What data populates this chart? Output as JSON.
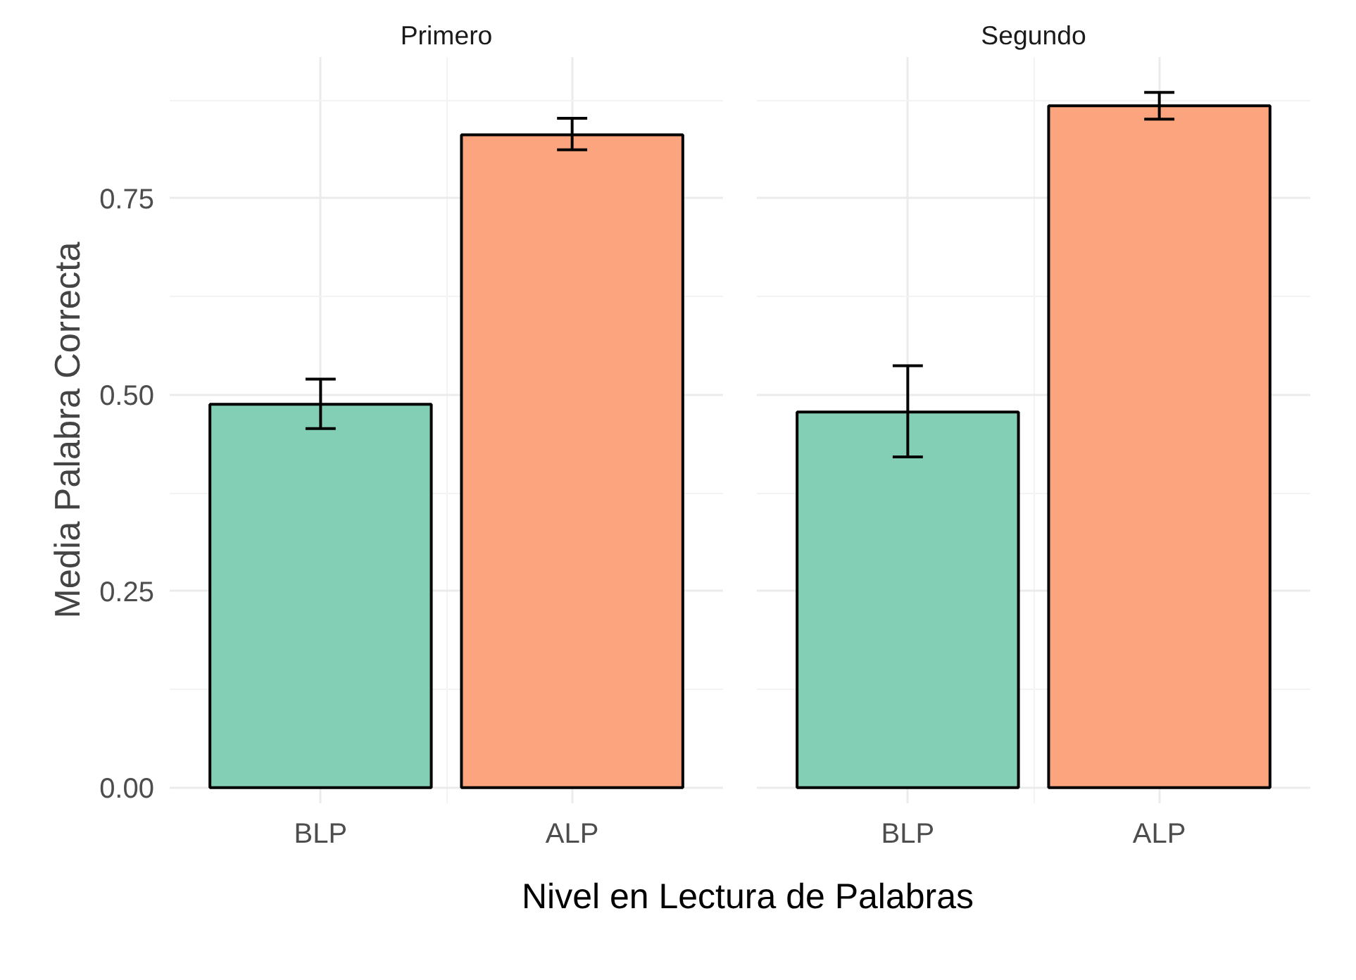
{
  "chart_data": [
    {
      "type": "bar",
      "title": "Primero",
      "ylabel": "Media Palabra Correcta",
      "xlabel": "Nivel en Lectura de Palabras",
      "categories": [
        "BLP",
        "ALP"
      ],
      "values": [
        0.488,
        0.831
      ],
      "errors": [
        [
          0.457,
          0.52
        ],
        [
          0.812,
          0.852
        ]
      ],
      "colors": [
        "#83cfb6",
        "#fca47e"
      ],
      "ylim": [
        -0.02,
        0.93
      ],
      "yticks": [
        {
          "value": 0,
          "label": "0.00"
        },
        {
          "value": 0.25,
          "label": "0.25"
        },
        {
          "value": 0.5,
          "label": "0.50"
        },
        {
          "value": 0.75,
          "label": "0.75"
        }
      ],
      "grid": true
    },
    {
      "type": "bar",
      "title": "Segundo",
      "categories": [
        "BLP",
        "ALP"
      ],
      "values": [
        0.478,
        0.868
      ],
      "errors": [
        [
          0.421,
          0.537
        ],
        [
          0.851,
          0.885
        ]
      ],
      "colors": [
        "#83cfb6",
        "#fca47e"
      ],
      "ylim": [
        -0.02,
        0.93
      ],
      "yticks": [
        0,
        0.25,
        0.5,
        0.75
      ],
      "grid": true,
      "tick_labels": "x"
    }
  ]
}
